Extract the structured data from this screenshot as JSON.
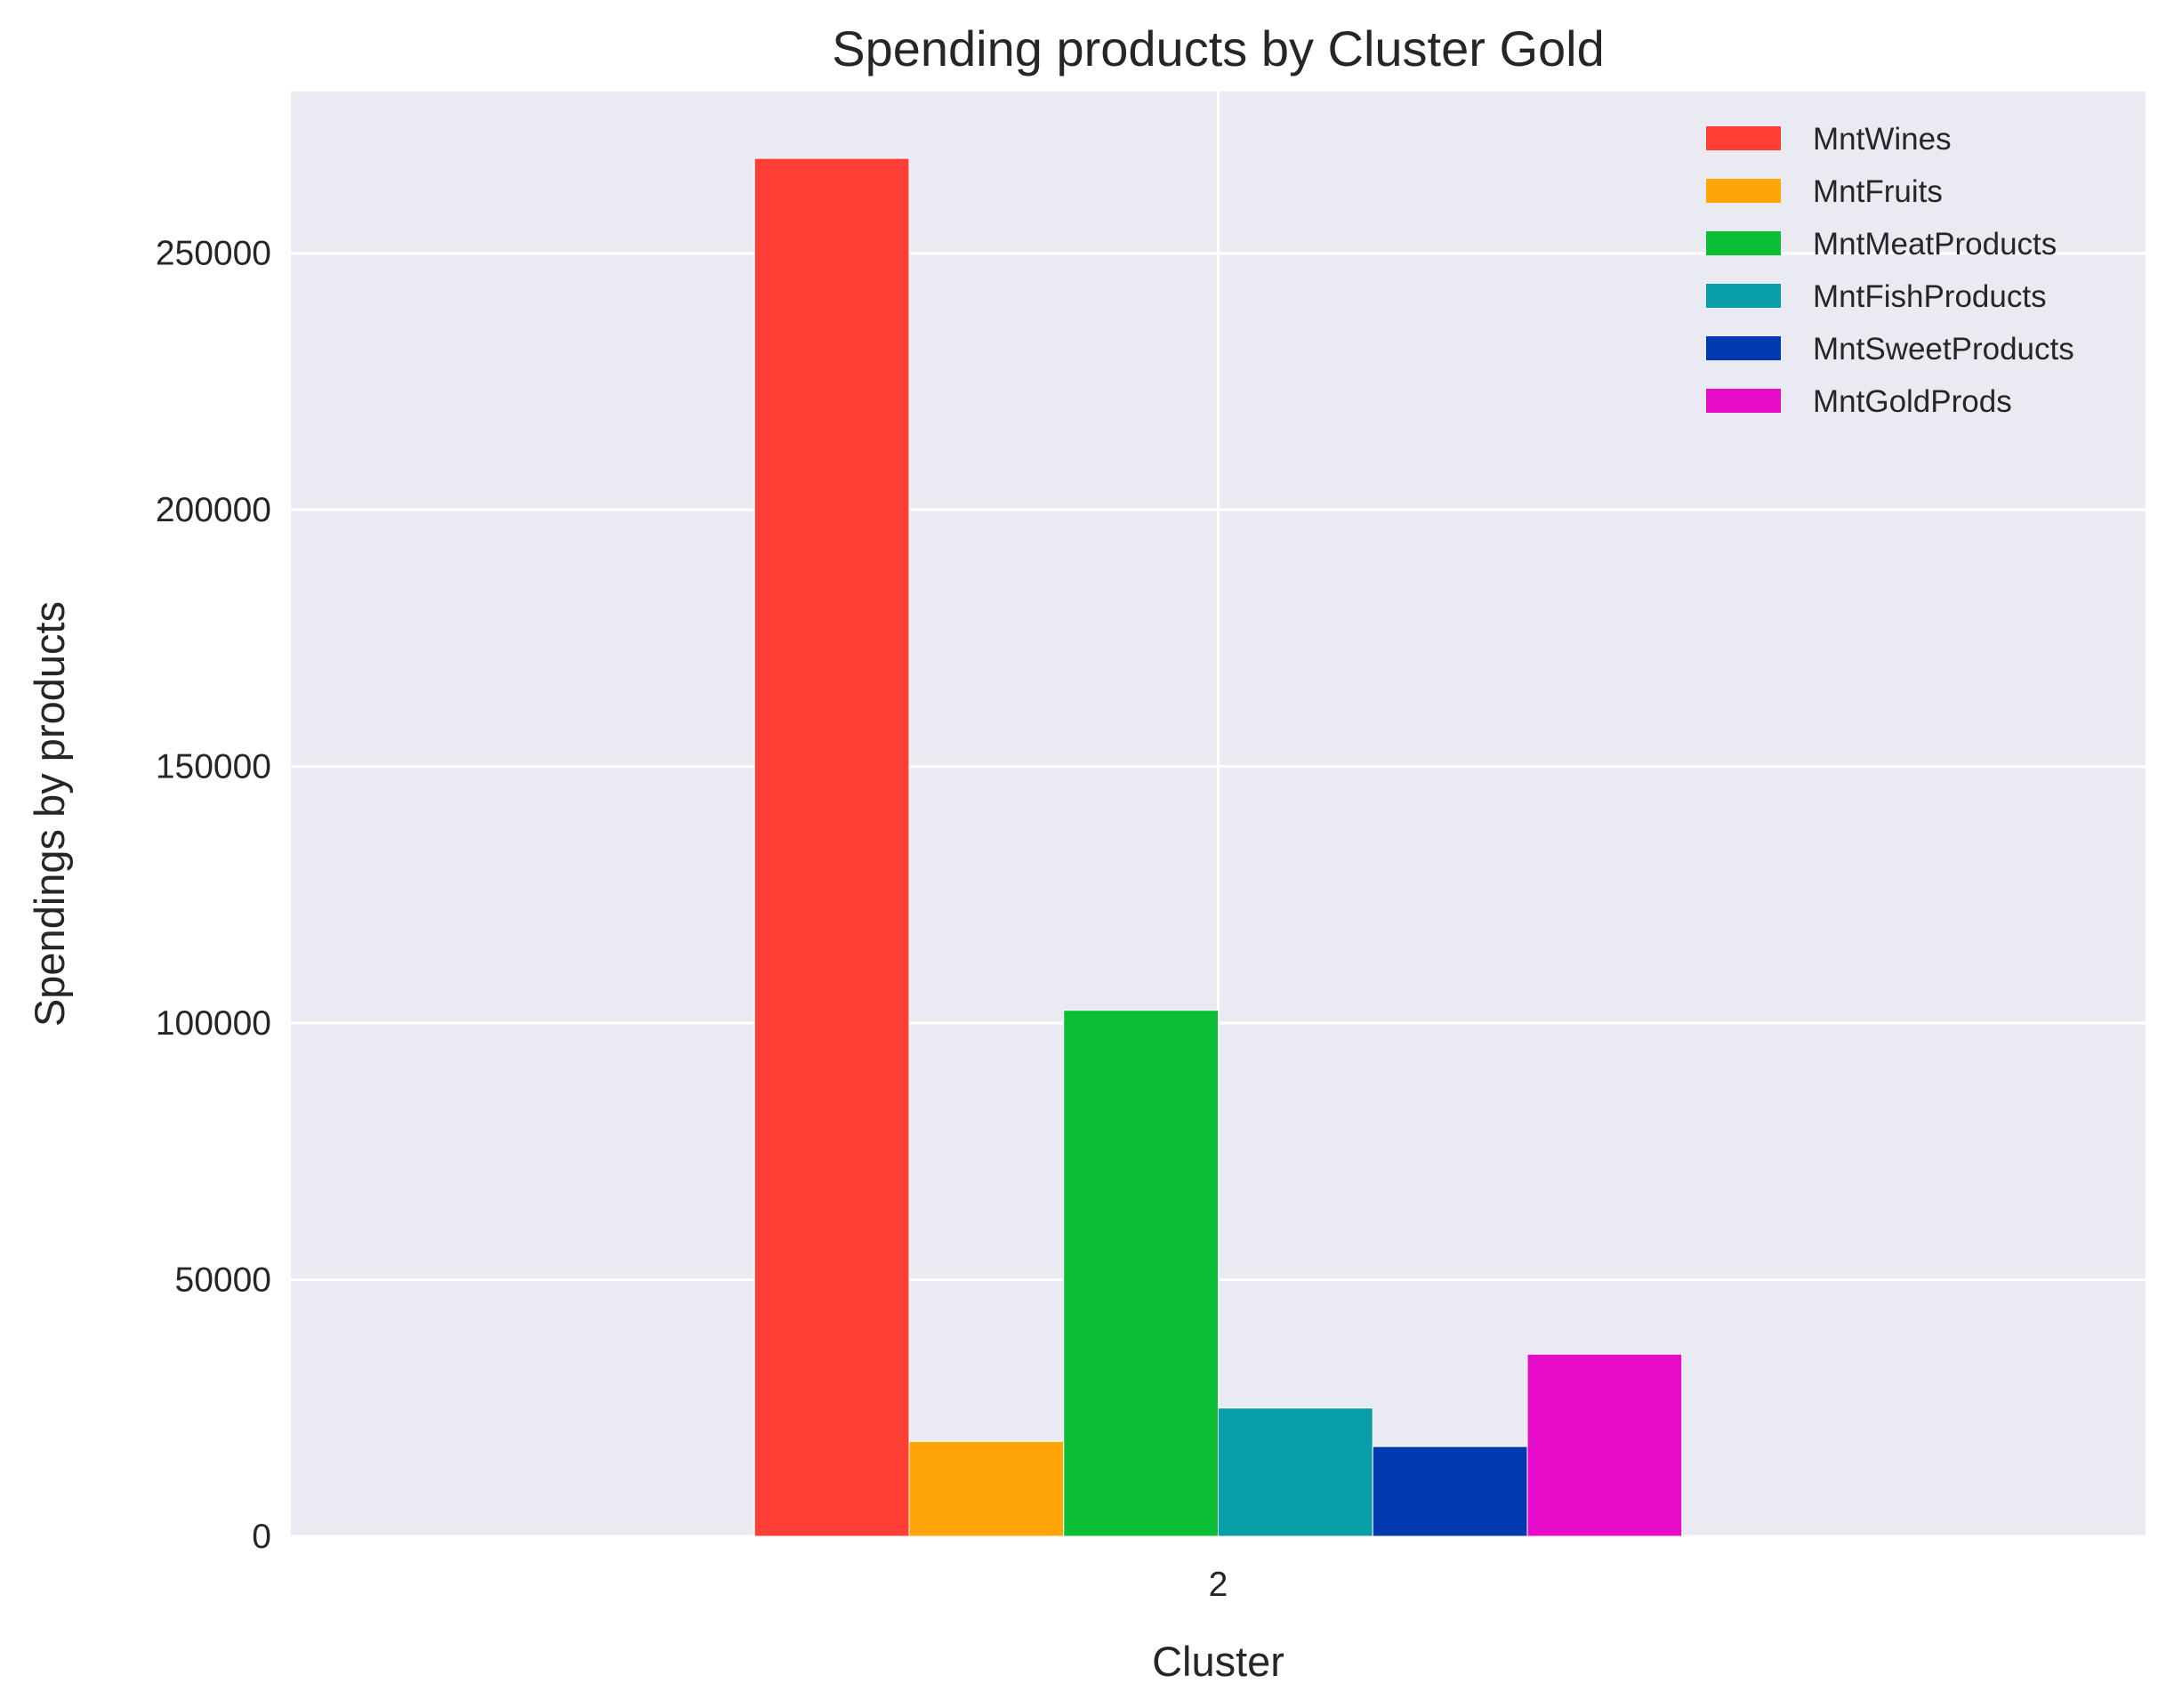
{
  "chart_data": {
    "type": "bar",
    "title": "Spending products by Cluster Gold",
    "xlabel": "Cluster",
    "ylabel": "Spendings by products",
    "categories": [
      "2"
    ],
    "series": [
      {
        "name": "MntWines",
        "values": [
          268500
        ],
        "color": "#ff3f35"
      },
      {
        "name": "MntFruits",
        "values": [
          18500
        ],
        "color": "#ffa50a"
      },
      {
        "name": "MntMeatProducts",
        "values": [
          102500
        ],
        "color": "#0abf35"
      },
      {
        "name": "MntFishProducts",
        "values": [
          25000
        ],
        "color": "#0a9ea8"
      },
      {
        "name": "MntSweetProducts",
        "values": [
          17500
        ],
        "color": "#033ab2"
      },
      {
        "name": "MntGoldProds",
        "values": [
          35500
        ],
        "color": "#e50bc8"
      }
    ],
    "ylim": [
      0,
      281500
    ],
    "yticks": [
      0,
      50000,
      100000,
      150000,
      200000,
      250000
    ],
    "ytick_labels": [
      "0",
      "50000",
      "100000",
      "150000",
      "200000",
      "250000"
    ],
    "grid": true,
    "legend_position": "top-right",
    "background_color": "#eaeaf2",
    "grid_color": "#ffffff"
  }
}
